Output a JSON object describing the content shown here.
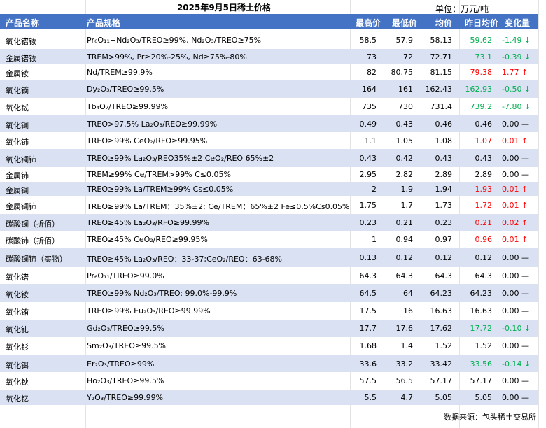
{
  "title": "2025年9月5日稀土价格",
  "unit": "单位：万元/吨",
  "headers": [
    "产品名称",
    "产品规格",
    "最高价",
    "最低价",
    "均价",
    "昨日均价",
    "变化量"
  ],
  "colors": {
    "header_bg": "#4472c4",
    "alt_row": "#d9e1f2",
    "up": "#ff0000",
    "down": "#00b050",
    "flat": "#000000"
  },
  "rows": [
    {
      "name": "氧化镨钕",
      "spec": "Pr₆O₁₁+Nd₂O₃/TREO≥99%, Nd₂O₃/TREO≥75%",
      "high": "58.5",
      "low": "57.9",
      "avg": "58.13",
      "prev": "59.62",
      "change": "-1.49 ↓",
      "dir": "down"
    },
    {
      "name": "金属镨钕",
      "spec": "TREM>99%, Pr≥20%-25%, Nd≥75%-80%",
      "high": "73",
      "low": "72",
      "avg": "72.71",
      "prev": "73.1",
      "change": "-0.39 ↓",
      "dir": "down"
    },
    {
      "name": "金属钕",
      "spec": "Nd/TREM≥99.9%",
      "high": "82",
      "low": "80.75",
      "avg": "81.15",
      "prev": "79.38",
      "change": "1.77 ↑",
      "dir": "up"
    },
    {
      "name": "氧化镝",
      "spec": "Dy₂O₃/TREO≥99.5%",
      "high": "164",
      "low": "161",
      "avg": "162.43",
      "prev": "162.93",
      "change": "-0.50 ↓",
      "dir": "down"
    },
    {
      "name": "氧化铽",
      "spec": "Tb₄O₇/TREO≥99.99%",
      "high": "735",
      "low": "730",
      "avg": "731.4",
      "prev": "739.2",
      "change": "-7.80 ↓",
      "dir": "down"
    },
    {
      "name": "氧化镧",
      "spec": "TREO>97.5% La₂O₃/REO≥99.99%",
      "high": "0.49",
      "low": "0.43",
      "avg": "0.46",
      "prev": "0.46",
      "change": "0.00 —",
      "dir": "flat"
    },
    {
      "name": "氧化铈",
      "spec": "TREO≥99% CeO₂/RFO≥99.95%",
      "high": "1.1",
      "low": "1.05",
      "avg": "1.08",
      "prev": "1.07",
      "change": "0.01 ↑",
      "dir": "up"
    },
    {
      "name": "氧化镧铈",
      "spec": "TREO≥99% La₂O₃/REO35%±2 CeO₂/REO 65%±2",
      "high": "0.43",
      "low": "0.42",
      "avg": "0.43",
      "prev": "0.43",
      "change": "0.00 —",
      "dir": "flat"
    },
    {
      "name": "金属铈",
      "spec": "TREM≥99% Ce/TREM>99% C≤0.05%",
      "high": "2.95",
      "low": "2.82",
      "avg": "2.89",
      "prev": "2.89",
      "change": "0.00 —",
      "dir": "flat"
    },
    {
      "name": "金属镧",
      "spec": "TREO≥99% La/TREM≥99% Cs≤0.05%",
      "high": "2",
      "low": "1.9",
      "avg": "1.94",
      "prev": "1.93",
      "change": "0.01 ↑",
      "dir": "up"
    },
    {
      "name": "金属镧铈",
      "spec": "TREO≥99% La/TREM：35%±2; Ce/TREM：65%±2 Fe≤0.5%Cs0.05%",
      "high": "1.75",
      "low": "1.7",
      "avg": "1.73",
      "prev": "1.72",
      "change": "0.01 ↑",
      "dir": "up"
    },
    {
      "name": "碳酸镧（折佰）",
      "spec": "TREO≥45% La₂O₃/RFO≥99.99%",
      "high": "0.23",
      "low": "0.21",
      "avg": "0.23",
      "prev": "0.21",
      "change": "0.02 ↑",
      "dir": "up"
    },
    {
      "name": "碳酸铈（折佰）",
      "spec": "TREO≥45% CeO₂/REO≥99.95%",
      "high": "1",
      "low": "0.94",
      "avg": "0.97",
      "prev": "0.96",
      "change": "0.01 ↑",
      "dir": "up"
    },
    {
      "name": "碳酸镧铈（实物）",
      "spec": "TREO≥45% La₂O₃/REO：33-37;CeO₂/REO：63-68%",
      "high": "0.13",
      "low": "0.12",
      "avg": "0.12",
      "prev": "0.12",
      "change": "0.00 —",
      "dir": "flat"
    },
    {
      "name": "氧化镨",
      "spec": "Pr₆O₁₁/TREO≥99.0%",
      "high": "64.3",
      "low": "64.3",
      "avg": "64.3",
      "prev": "64.3",
      "change": "0.00 —",
      "dir": "flat"
    },
    {
      "name": "氧化钕",
      "spec": "TREO≥99% Nd₂O₃/TREO: 99.0%-99.9%",
      "high": "64.5",
      "low": "64",
      "avg": "64.23",
      "prev": "64.23",
      "change": "0.00 —",
      "dir": "flat"
    },
    {
      "name": "氧化铕",
      "spec": "TREO≥99% Eu₂O₃/REO≥99.99%",
      "high": "17.5",
      "low": "16",
      "avg": "16.63",
      "prev": "16.63",
      "change": "0.00 —",
      "dir": "flat"
    },
    {
      "name": "氧化钆",
      "spec": "Gd₂O₃/TREO≥99.5%",
      "high": "17.7",
      "low": "17.6",
      "avg": "17.62",
      "prev": "17.72",
      "change": "-0.10 ↓",
      "dir": "down"
    },
    {
      "name": "氧化钐",
      "spec": "Sm₂O₃/TREO≥99.5%",
      "high": "1.68",
      "low": "1.4",
      "avg": "1.52",
      "prev": "1.52",
      "change": "0.00 —",
      "dir": "flat"
    },
    {
      "name": "氧化铒",
      "spec": "Er₂O₃/TREO≥99%",
      "high": "33.6",
      "low": "33.2",
      "avg": "33.42",
      "prev": "33.56",
      "change": "-0.14 ↓",
      "dir": "down"
    },
    {
      "name": "氧化钬",
      "spec": "Ho₂O₃/TREO≥99.5%",
      "high": "57.5",
      "low": "56.5",
      "avg": "57.17",
      "prev": "57.17",
      "change": "0.00 —",
      "dir": "flat"
    },
    {
      "name": "氧化钇",
      "spec": "Y₂O₃/TREO≥99.99%",
      "high": "5.5",
      "low": "4.7",
      "avg": "5.05",
      "prev": "5.05",
      "change": "0.00 —",
      "dir": "flat"
    }
  ],
  "source": "数据来源：包头稀土交易所"
}
